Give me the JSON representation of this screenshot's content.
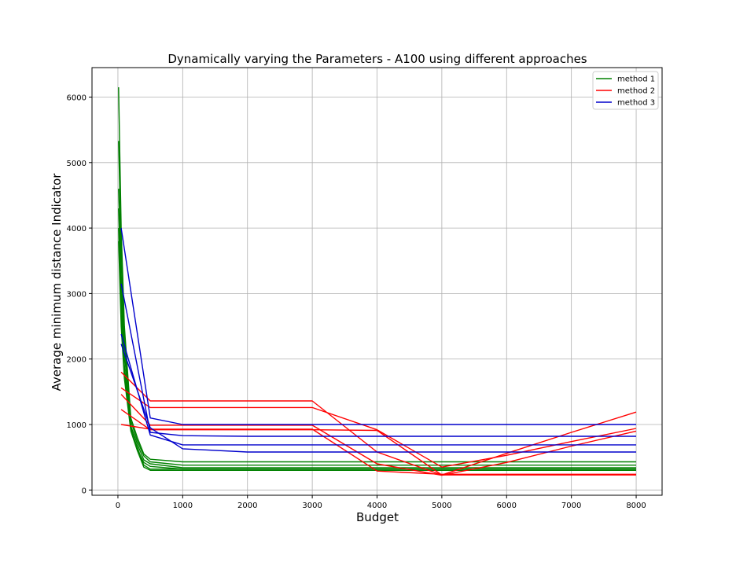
{
  "chart_data": {
    "type": "line",
    "title": "Dynamically varying the Parameters  - A100 using different approaches",
    "xlabel": "Budget",
    "ylabel": "Average minimum distance Indicator",
    "xlim": [
      -400,
      8400
    ],
    "ylim": [
      -80,
      6450
    ],
    "xticks": [
      0,
      1000,
      2000,
      3000,
      4000,
      5000,
      6000,
      7000,
      8000
    ],
    "xtick_labels": [
      "0",
      "1000",
      "2000",
      "3000",
      "4000",
      "5000",
      "6000",
      "7000",
      "8000"
    ],
    "yticks": [
      0,
      1000,
      2000,
      3000,
      4000,
      5000,
      6000
    ],
    "ytick_labels": [
      "0",
      "1000",
      "2000",
      "3000",
      "4000",
      "5000",
      "6000"
    ],
    "grid": true,
    "legend_position": "top-right",
    "legend": [
      {
        "label": "method 1",
        "color": "#008000"
      },
      {
        "label": "method 2",
        "color": "#ff0000"
      },
      {
        "label": "method 3",
        "color": "#0000cc"
      }
    ],
    "series": [
      {
        "method": 1,
        "color": "#008000",
        "x": [
          10,
          50,
          100,
          200,
          300,
          400,
          500,
          1000,
          2000,
          3000,
          4000,
          5000,
          6000,
          7000,
          8000
        ],
        "y": [
          6150,
          4000,
          2500,
          1100,
          800,
          550,
          470,
          430,
          430,
          430,
          430,
          430,
          430,
          430,
          430
        ]
      },
      {
        "method": 1,
        "color": "#008000",
        "x": [
          10,
          50,
          100,
          200,
          300,
          400,
          500,
          1000,
          2000,
          3000,
          4000,
          5000,
          6000,
          7000,
          8000
        ],
        "y": [
          5330,
          3700,
          2300,
          1050,
          750,
          520,
          430,
          380,
          380,
          380,
          380,
          380,
          380,
          380,
          380
        ]
      },
      {
        "method": 1,
        "color": "#008000",
        "x": [
          10,
          50,
          100,
          200,
          300,
          400,
          500,
          1000,
          2000,
          3000,
          4000,
          5000,
          6000,
          7000,
          8000
        ],
        "y": [
          4600,
          3300,
          2100,
          980,
          700,
          460,
          400,
          340,
          340,
          340,
          340,
          340,
          340,
          340,
          340
        ]
      },
      {
        "method": 1,
        "color": "#008000",
        "x": [
          10,
          50,
          100,
          200,
          300,
          400,
          500,
          1000,
          2000,
          3000,
          4000,
          5000,
          6000,
          7000,
          8000
        ],
        "y": [
          4300,
          3000,
          1900,
          920,
          650,
          380,
          320,
          320,
          320,
          320,
          320,
          320,
          320,
          320,
          320
        ]
      },
      {
        "method": 1,
        "color": "#008000",
        "x": [
          10,
          50,
          100,
          200,
          300,
          400,
          500,
          1000,
          2000,
          3000,
          4000,
          5000,
          6000,
          7000,
          8000
        ],
        "y": [
          4000,
          2700,
          1800,
          950,
          620,
          420,
          360,
          320,
          320,
          320,
          320,
          320,
          320,
          320,
          320
        ]
      },
      {
        "method": 1,
        "color": "#008000",
        "x": [
          10,
          50,
          100,
          200,
          300,
          400,
          500,
          1000,
          2000,
          3000,
          4000,
          5000,
          6000,
          7000,
          8000
        ],
        "y": [
          3800,
          2500,
          1700,
          900,
          600,
          350,
          300,
          300,
          300,
          300,
          300,
          300,
          300,
          300,
          300
        ]
      },
      {
        "method": 2,
        "color": "#ff0000",
        "x": [
          50,
          500,
          1000,
          2000,
          3000,
          4000,
          5000,
          6000,
          7000,
          8000
        ],
        "y": [
          1800,
          1360,
          1360,
          1360,
          1360,
          580,
          230,
          560,
          880,
          1190
        ]
      },
      {
        "method": 2,
        "color": "#ff0000",
        "x": [
          50,
          500,
          1000,
          2000,
          3000,
          4000,
          5000,
          6000,
          7000,
          8000
        ],
        "y": [
          1560,
          1260,
          1260,
          1260,
          1260,
          920,
          350,
          530,
          740,
          940
        ]
      },
      {
        "method": 2,
        "color": "#ff0000",
        "x": [
          50,
          500,
          1000,
          2000,
          3000,
          4000,
          5000,
          6000,
          7000,
          8000
        ],
        "y": [
          1460,
          990,
          990,
          990,
          990,
          400,
          225,
          420,
          670,
          900
        ]
      },
      {
        "method": 2,
        "color": "#ff0000",
        "x": [
          50,
          500,
          1000,
          2000,
          3000,
          4000,
          5000,
          6000,
          7000,
          8000
        ],
        "y": [
          1230,
          920,
          920,
          920,
          920,
          910,
          230,
          230,
          230,
          230
        ]
      },
      {
        "method": 2,
        "color": "#ff0000",
        "x": [
          50,
          500,
          1000,
          2000,
          3000,
          4000,
          5000,
          6000,
          7000,
          8000
        ],
        "y": [
          1000,
          930,
          930,
          930,
          930,
          290,
          240,
          240,
          240,
          240
        ]
      },
      {
        "method": 3,
        "color": "#0000cc",
        "x": [
          50,
          500,
          1000,
          2000,
          3000,
          4000,
          5000,
          6000,
          7000,
          8000
        ],
        "y": [
          4000,
          1100,
          1000,
          1000,
          1000,
          1000,
          1000,
          1000,
          1000,
          1000
        ]
      },
      {
        "method": 3,
        "color": "#0000cc",
        "x": [
          50,
          500,
          1000,
          2000,
          3000,
          4000,
          5000,
          6000,
          7000,
          8000
        ],
        "y": [
          3150,
          880,
          830,
          820,
          820,
          820,
          820,
          820,
          820,
          820
        ]
      },
      {
        "method": 3,
        "color": "#0000cc",
        "x": [
          50,
          500,
          1000,
          2000,
          3000,
          4000,
          5000,
          6000,
          7000,
          8000
        ],
        "y": [
          2380,
          840,
          690,
          690,
          690,
          690,
          690,
          690,
          690,
          690
        ]
      },
      {
        "method": 3,
        "color": "#0000cc",
        "x": [
          50,
          500,
          1000,
          2000,
          3000,
          4000,
          5000,
          6000,
          7000,
          8000
        ],
        "y": [
          2230,
          950,
          630,
          580,
          580,
          580,
          580,
          580,
          580,
          580
        ]
      }
    ]
  }
}
